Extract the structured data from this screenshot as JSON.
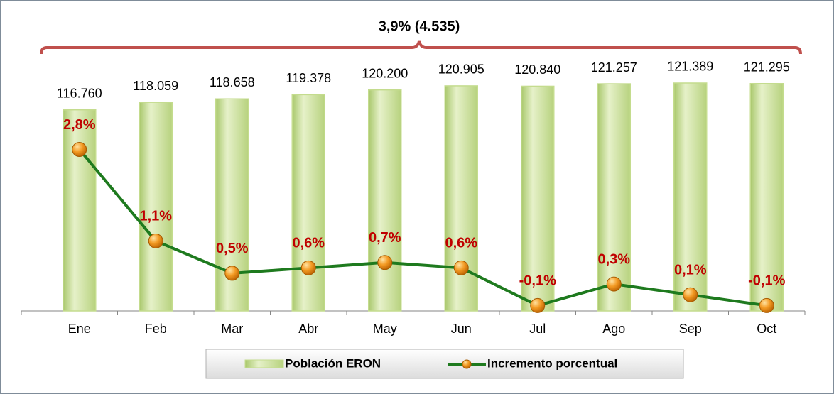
{
  "chart_data": {
    "type": "bar",
    "annotation": "3,9% (4.535)",
    "categories": [
      "Ene",
      "Feb",
      "Mar",
      "Abr",
      "May",
      "Jun",
      "Jul",
      "Ago",
      "Sep",
      "Oct"
    ],
    "series": [
      {
        "name": "Población ERON",
        "type": "bar",
        "color": "#c4dc8e",
        "values": [
          116760,
          118059,
          118658,
          119378,
          120200,
          120905,
          120840,
          121257,
          121389,
          121295
        ],
        "value_labels": [
          "116.760",
          "118.059",
          "118.658",
          "119.378",
          "120.200",
          "120.905",
          "120.840",
          "121.257",
          "121.389",
          "121.295"
        ]
      },
      {
        "name": "Incremento porcentual",
        "type": "line",
        "axis": "y2",
        "color": "#1e7a1e",
        "values": [
          2.8,
          1.1,
          0.5,
          0.6,
          0.7,
          0.6,
          -0.1,
          0.3,
          0.1,
          -0.1
        ],
        "value_labels": [
          "2,8%",
          "1,1%",
          "0,5%",
          "0,6%",
          "0,7%",
          "0,6%",
          "-0,1%",
          "0,3%",
          "0,1%",
          "-0,1%"
        ]
      }
    ],
    "ylim": [
      82000,
      122000
    ],
    "y2lim": [
      -0.2,
      4.1
    ],
    "legend": "bottom"
  }
}
